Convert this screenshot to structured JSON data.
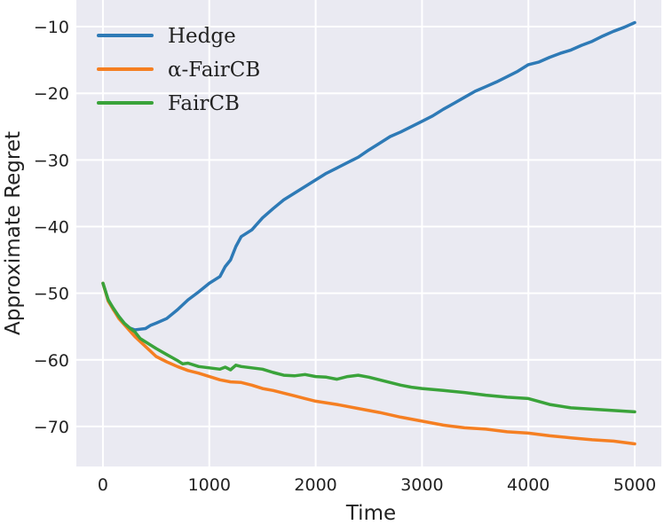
{
  "chart_data": {
    "type": "line",
    "title": "",
    "xlabel": "Time",
    "ylabel": "Approximate Regret",
    "xlim": [
      -250,
      5250
    ],
    "ylim": [
      -76,
      -6
    ],
    "xticks": [
      0,
      1000,
      2000,
      3000,
      4000,
      5000
    ],
    "yticks": [
      -10,
      -20,
      -30,
      -40,
      -50,
      -60,
      -70
    ],
    "xtick_labels": [
      "0",
      "1000",
      "2000",
      "3000",
      "4000",
      "5000"
    ],
    "ytick_labels": [
      "−10",
      "−20",
      "−30",
      "−40",
      "−50",
      "−60",
      "−70"
    ],
    "grid": true,
    "legend_position": "top-left",
    "background": "#eaeaf2",
    "series": [
      {
        "name": "Hedge",
        "color": "#2e7ab6",
        "x": [
          0,
          50,
          100,
          150,
          200,
          250,
          300,
          350,
          400,
          450,
          500,
          600,
          700,
          800,
          900,
          1000,
          1100,
          1150,
          1200,
          1250,
          1300,
          1400,
          1500,
          1600,
          1700,
          1800,
          1900,
          2000,
          2100,
          2200,
          2300,
          2400,
          2500,
          2600,
          2700,
          2800,
          2900,
          3000,
          3100,
          3200,
          3300,
          3400,
          3500,
          3600,
          3700,
          3800,
          3900,
          4000,
          4100,
          4200,
          4300,
          4400,
          4500,
          4600,
          4700,
          4800,
          4900,
          5000
        ],
        "y": [
          -48.5,
          -51.0,
          -52.5,
          -53.5,
          -54.5,
          -55.2,
          -55.5,
          -55.4,
          -55.3,
          -54.8,
          -54.5,
          -53.8,
          -52.5,
          -51.0,
          -49.8,
          -48.5,
          -47.5,
          -46.0,
          -45.0,
          -43.0,
          -41.5,
          -40.5,
          -38.7,
          -37.3,
          -36.0,
          -35.0,
          -34.0,
          -33.0,
          -32.0,
          -31.2,
          -30.4,
          -29.6,
          -28.5,
          -27.5,
          -26.5,
          -25.8,
          -25.0,
          -24.2,
          -23.4,
          -22.4,
          -21.5,
          -20.6,
          -19.7,
          -19.0,
          -18.3,
          -17.5,
          -16.7,
          -15.7,
          -15.3,
          -14.6,
          -14.0,
          -13.5,
          -12.8,
          -12.2,
          -11.4,
          -10.7,
          -10.1,
          -9.4
        ]
      },
      {
        "name": "α-FairCB",
        "color": "#f57f22",
        "x": [
          0,
          50,
          100,
          150,
          200,
          250,
          300,
          400,
          500,
          600,
          700,
          800,
          900,
          1000,
          1100,
          1200,
          1300,
          1400,
          1500,
          1600,
          1700,
          1800,
          1900,
          2000,
          2200,
          2400,
          2600,
          2800,
          3000,
          3200,
          3400,
          3600,
          3800,
          4000,
          4200,
          4400,
          4600,
          4800,
          5000
        ],
        "y": [
          -48.5,
          -51.2,
          -52.5,
          -53.8,
          -54.7,
          -55.6,
          -56.5,
          -58.0,
          -59.5,
          -60.3,
          -61.0,
          -61.6,
          -62.0,
          -62.5,
          -63.0,
          -63.3,
          -63.4,
          -63.8,
          -64.3,
          -64.6,
          -65.0,
          -65.4,
          -65.8,
          -66.2,
          -66.7,
          -67.3,
          -67.9,
          -68.6,
          -69.2,
          -69.8,
          -70.2,
          -70.4,
          -70.8,
          -71.0,
          -71.4,
          -71.7,
          -72.0,
          -72.2,
          -72.6
        ]
      },
      {
        "name": "FairCB",
        "color": "#3aa33a",
        "x": [
          0,
          50,
          100,
          150,
          200,
          250,
          300,
          350,
          400,
          450,
          500,
          600,
          700,
          750,
          800,
          900,
          1000,
          1100,
          1150,
          1200,
          1250,
          1300,
          1400,
          1500,
          1600,
          1700,
          1800,
          1900,
          2000,
          2100,
          2200,
          2300,
          2400,
          2500,
          2600,
          2700,
          2800,
          2900,
          3000,
          3200,
          3400,
          3600,
          3800,
          4000,
          4200,
          4400,
          4600,
          4800,
          5000
        ],
        "y": [
          -48.5,
          -51.0,
          -52.3,
          -53.5,
          -54.5,
          -55.2,
          -55.8,
          -56.8,
          -57.3,
          -57.8,
          -58.3,
          -59.2,
          -60.1,
          -60.6,
          -60.5,
          -61.0,
          -61.2,
          -61.4,
          -61.1,
          -61.5,
          -60.8,
          -61.0,
          -61.2,
          -61.4,
          -61.9,
          -62.3,
          -62.4,
          -62.2,
          -62.5,
          -62.6,
          -62.9,
          -62.5,
          -62.3,
          -62.6,
          -63.0,
          -63.4,
          -63.8,
          -64.1,
          -64.3,
          -64.6,
          -64.9,
          -65.3,
          -65.6,
          -65.8,
          -66.7,
          -67.2,
          -67.4,
          -67.6,
          -67.8
        ]
      }
    ]
  }
}
